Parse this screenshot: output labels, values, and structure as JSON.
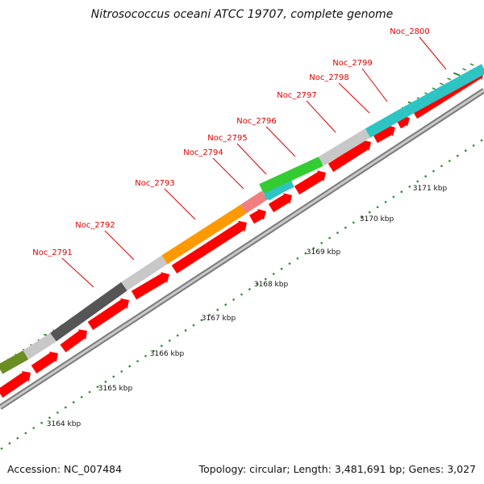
{
  "title": "Nitrosococcus oceani ATCC 19707, complete genome",
  "footer": {
    "accession": "Accession: NC_007484",
    "summary": "Topology: circular; Length: 3,481,691 bp; Genes: 3,027"
  },
  "colors": {
    "cds_arrow": "#ff0000",
    "backbone": "#9a9a9a",
    "tick": "#2e8b2e",
    "label": "#dd0000"
  },
  "genes": [
    {
      "name": "Noc_2791",
      "color": "#555555"
    },
    {
      "name": "Noc_2792",
      "color": "#c8c8c8"
    },
    {
      "name": "Noc_2793",
      "color": "#ff9900"
    },
    {
      "name": "Noc_2794",
      "color": "#f08080"
    },
    {
      "name": "Noc_2795",
      "color": "#2ec4c4"
    },
    {
      "name": "Noc_2796",
      "color": "#33cc33"
    },
    {
      "name": "Noc_2797",
      "color": "#c8c8c8"
    },
    {
      "name": "Noc_2798",
      "color": "#2ec4c4"
    },
    {
      "name": "Noc_2799",
      "color": "#2ec4c4"
    },
    {
      "name": "Noc_2800",
      "color": "#2ec4c4"
    }
  ],
  "other_genes": [
    {
      "color": "#6b8e23"
    },
    {
      "color": "#c8c8c8"
    }
  ],
  "kbp_labels": [
    "3164 kbp",
    "3165 kbp",
    "3166 kbp",
    "3167 kbp",
    "3168 kbp",
    "3169 kbp",
    "3170 kbp",
    "3171 kbp"
  ]
}
